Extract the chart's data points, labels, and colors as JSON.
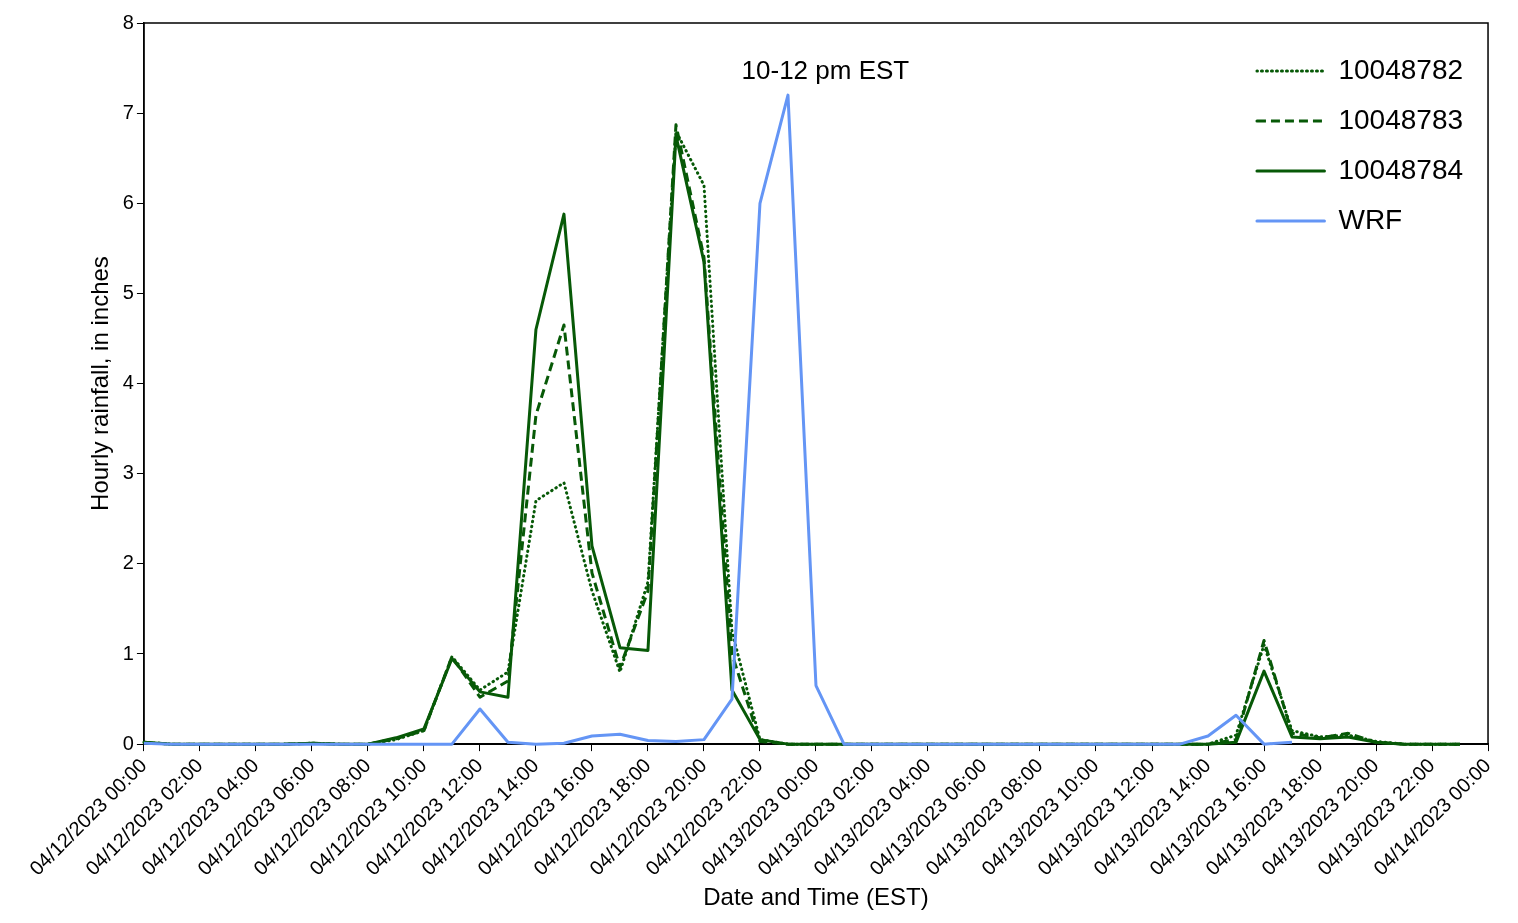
{
  "chart_data": {
    "type": "line",
    "xlabel": "Date and Time (EST)",
    "ylabel": "Hourly rainfall, in inches",
    "x": [
      "2023-04-12T00:00",
      "2023-04-12T01:00",
      "2023-04-12T02:00",
      "2023-04-12T03:00",
      "2023-04-12T04:00",
      "2023-04-12T05:00",
      "2023-04-12T06:00",
      "2023-04-12T07:00",
      "2023-04-12T08:00",
      "2023-04-12T09:00",
      "2023-04-12T10:00",
      "2023-04-12T11:00",
      "2023-04-12T12:00",
      "2023-04-12T13:00",
      "2023-04-12T14:00",
      "2023-04-12T15:00",
      "2023-04-12T16:00",
      "2023-04-12T17:00",
      "2023-04-12T18:00",
      "2023-04-12T19:00",
      "2023-04-12T20:00",
      "2023-04-12T21:00",
      "2023-04-12T22:00",
      "2023-04-12T23:00",
      "2023-04-13T00:00",
      "2023-04-13T01:00",
      "2023-04-13T02:00",
      "2023-04-13T03:00",
      "2023-04-13T04:00",
      "2023-04-13T05:00",
      "2023-04-13T06:00",
      "2023-04-13T07:00",
      "2023-04-13T08:00",
      "2023-04-13T09:00",
      "2023-04-13T10:00",
      "2023-04-13T11:00",
      "2023-04-13T12:00",
      "2023-04-13T13:00",
      "2023-04-13T14:00",
      "2023-04-13T15:00",
      "2023-04-13T16:00",
      "2023-04-13T17:00",
      "2023-04-13T18:00",
      "2023-04-13T19:00",
      "2023-04-13T20:00",
      "2023-04-13T21:00",
      "2023-04-13T22:00",
      "2023-04-13T23:00"
    ],
    "series": [
      {
        "name": "10048782",
        "color": "#075907",
        "line_style": "dotted",
        "values": [
          0.02,
          0,
          0,
          0,
          0,
          0,
          0.01,
          0,
          0,
          0.05,
          0.15,
          0.97,
          0.6,
          0.8,
          2.7,
          2.9,
          1.7,
          0.8,
          1.8,
          6.8,
          6.2,
          1.25,
          0.05,
          0,
          0,
          0,
          0,
          0,
          0,
          0,
          0,
          0,
          0,
          0,
          0,
          0,
          0,
          0,
          0,
          0.1,
          1.1,
          0.15,
          0.08,
          0.1,
          0.03,
          0,
          0,
          0
        ]
      },
      {
        "name": "10048783",
        "color": "#075907",
        "line_style": "dashed",
        "values": [
          0.02,
          0,
          0,
          0,
          0,
          0,
          0.01,
          0,
          0,
          0.06,
          0.15,
          0.97,
          0.52,
          0.7,
          3.65,
          4.65,
          1.9,
          0.85,
          1.7,
          6.87,
          5.4,
          1.0,
          0.03,
          0,
          0,
          0,
          0,
          0,
          0,
          0,
          0,
          0,
          0,
          0,
          0,
          0,
          0,
          0,
          0,
          0.05,
          1.15,
          0.12,
          0.07,
          0.12,
          0.02,
          0,
          0,
          0
        ]
      },
      {
        "name": "10048784",
        "color": "#075907",
        "line_style": "solid",
        "values": [
          0.02,
          0,
          0,
          0,
          0,
          0,
          0.01,
          0,
          0,
          0.07,
          0.17,
          0.95,
          0.58,
          0.52,
          4.6,
          5.88,
          2.2,
          1.07,
          1.04,
          6.75,
          5.35,
          0.6,
          0.05,
          0,
          0,
          0,
          0,
          0,
          0,
          0,
          0,
          0,
          0,
          0,
          0,
          0,
          0,
          0,
          0,
          0.02,
          0.81,
          0.08,
          0.06,
          0.08,
          0.02,
          0,
          0,
          0
        ]
      },
      {
        "name": "WRF",
        "color": "#6495f5",
        "line_style": "solid",
        "values": [
          0.01,
          0,
          0,
          0,
          0,
          0,
          0,
          0,
          0,
          0,
          0,
          0,
          0.39,
          0.02,
          0,
          0.01,
          0.09,
          0.11,
          0.04,
          0.03,
          0.05,
          0.5,
          6.0,
          7.2,
          0.65,
          0,
          0,
          0,
          0,
          0,
          0,
          0,
          0,
          0,
          0,
          0,
          0,
          0,
          0.09,
          0.32,
          0,
          0.02,
          null,
          null,
          null,
          null,
          null,
          null
        ]
      }
    ],
    "xlim": [
      "2023-04-12T00:00",
      "2023-04-14T00:00"
    ],
    "xticks": [
      {
        "value": "2023-04-12T00:00",
        "label": "04/12/2023 00:00"
      },
      {
        "value": "2023-04-12T02:00",
        "label": "04/12/2023 02:00"
      },
      {
        "value": "2023-04-12T04:00",
        "label": "04/12/2023 04:00"
      },
      {
        "value": "2023-04-12T06:00",
        "label": "04/12/2023 06:00"
      },
      {
        "value": "2023-04-12T08:00",
        "label": "04/12/2023 08:00"
      },
      {
        "value": "2023-04-12T10:00",
        "label": "04/12/2023 10:00"
      },
      {
        "value": "2023-04-12T12:00",
        "label": "04/12/2023 12:00"
      },
      {
        "value": "2023-04-12T14:00",
        "label": "04/12/2023 14:00"
      },
      {
        "value": "2023-04-12T16:00",
        "label": "04/12/2023 16:00"
      },
      {
        "value": "2023-04-12T18:00",
        "label": "04/12/2023 18:00"
      },
      {
        "value": "2023-04-12T20:00",
        "label": "04/12/2023 20:00"
      },
      {
        "value": "2023-04-12T22:00",
        "label": "04/12/2023 22:00"
      },
      {
        "value": "2023-04-13T00:00",
        "label": "04/13/2023 00:00"
      },
      {
        "value": "2023-04-13T02:00",
        "label": "04/13/2023 02:00"
      },
      {
        "value": "2023-04-13T04:00",
        "label": "04/13/2023 04:00"
      },
      {
        "value": "2023-04-13T06:00",
        "label": "04/13/2023 06:00"
      },
      {
        "value": "2023-04-13T08:00",
        "label": "04/13/2023 08:00"
      },
      {
        "value": "2023-04-13T10:00",
        "label": "04/13/2023 10:00"
      },
      {
        "value": "2023-04-13T12:00",
        "label": "04/13/2023 12:00"
      },
      {
        "value": "2023-04-13T14:00",
        "label": "04/13/2023 14:00"
      },
      {
        "value": "2023-04-13T16:00",
        "label": "04/13/2023 16:00"
      },
      {
        "value": "2023-04-13T18:00",
        "label": "04/13/2023 18:00"
      },
      {
        "value": "2023-04-13T20:00",
        "label": "04/13/2023 20:00"
      },
      {
        "value": "2023-04-13T22:00",
        "label": "04/13/2023 22:00"
      },
      {
        "value": "2023-04-14T00:00",
        "label": "04/14/2023 00:00"
      }
    ],
    "ylim": [
      0,
      8
    ],
    "yticks": [
      0,
      1,
      2,
      3,
      4,
      5,
      6,
      7,
      8
    ],
    "annotations": [
      "10-12 pm EST"
    ],
    "legend": "top right",
    "marker": "none"
  }
}
